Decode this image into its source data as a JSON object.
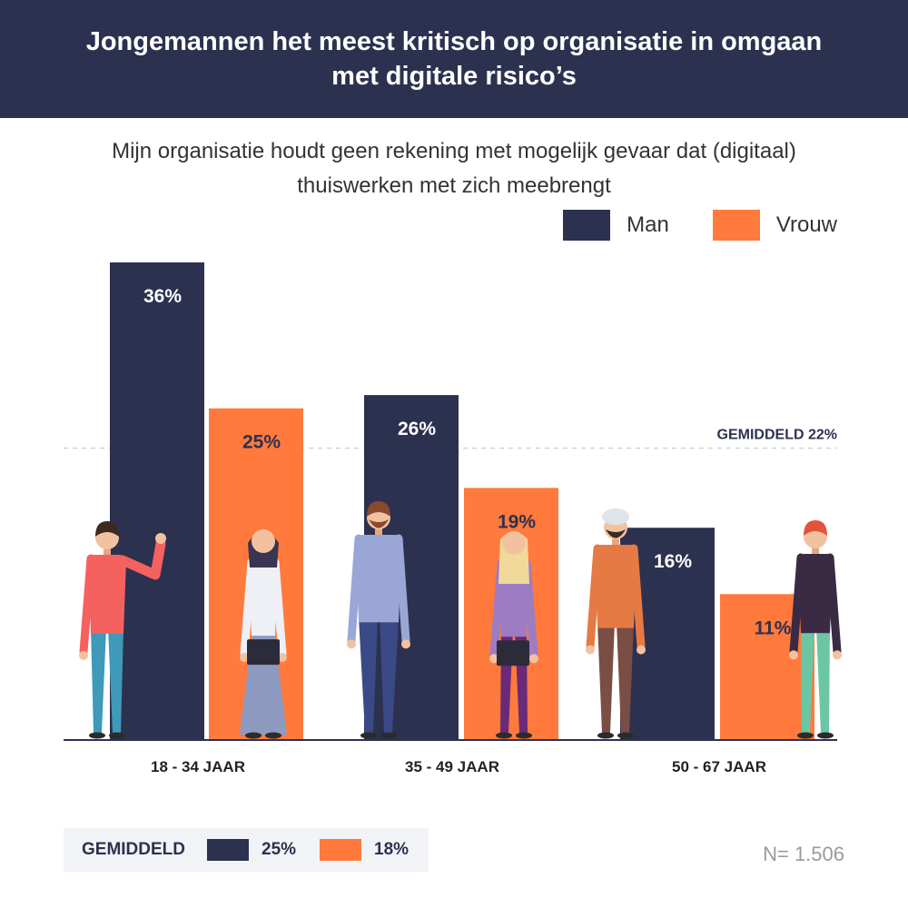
{
  "header": {
    "title": "Jongemannen het meest kritisch op organisatie in omgaan met digitale risico’s"
  },
  "colors": {
    "man": "#2d3150",
    "vrouw": "#ff7a3c",
    "header_bg": "#2d3150"
  },
  "chart_data": {
    "type": "bar",
    "title": "Mijn organisatie houdt geen rekening met mogelijk gevaar dat (digitaal) thuiswerken met zich meebrengt",
    "categories": [
      "18 - 34 JAAR",
      "35 - 49 JAAR",
      "50 - 67 JAAR"
    ],
    "series": [
      {
        "name": "Man",
        "values": [
          36,
          26,
          16
        ],
        "labels": [
          "36%",
          "26%",
          "16%"
        ]
      },
      {
        "name": "Vrouw",
        "values": [
          25,
          19,
          11
        ],
        "labels": [
          "25%",
          "19%",
          "11%"
        ]
      }
    ],
    "unit": "%",
    "ylim": [
      0,
      36
    ],
    "average_line": {
      "value": 22,
      "label": "GEMIDDELD 22%"
    },
    "legend_position": "top-right",
    "grid": false
  },
  "footer": {
    "average_label": "GEMIDDELD",
    "man_average": "25%",
    "vrouw_average": "18%",
    "sample_size": "N= 1.506"
  }
}
